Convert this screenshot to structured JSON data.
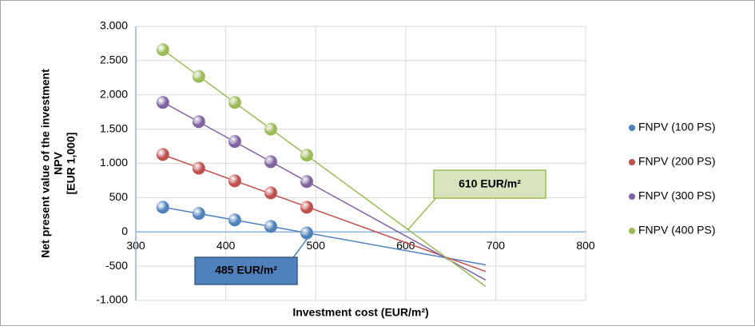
{
  "chart_data": {
    "type": "scatter",
    "x_label": "Investment cost (EUR/m²)",
    "y_label": [
      "Net present value of the investment",
      "NPV",
      "[EUR 1,000]"
    ],
    "x": [
      330,
      370,
      410,
      450,
      490
    ],
    "series": [
      {
        "name": "FNPV (100 PS)",
        "color": "#4f81bd",
        "values": [
          360,
          270,
          175,
          80,
          -15
        ]
      },
      {
        "name": "FNPV (200 PS)",
        "color": "#c0504d",
        "values": [
          1130,
          930,
          745,
          570,
          360
        ]
      },
      {
        "name": "FNPV (300 PS)",
        "color": "#8064a2",
        "values": [
          1890,
          1610,
          1320,
          1025,
          735
        ]
      },
      {
        "name": "FNPV (400 PS)",
        "color": "#9bbb59",
        "values": [
          2660,
          2270,
          1890,
          1500,
          1120
        ]
      }
    ],
    "xlim": [
      300,
      800
    ],
    "xticks": [
      300,
      400,
      500,
      600,
      700,
      800
    ],
    "ylim": [
      -1000,
      3000
    ],
    "yticks": [
      {
        "value": -1000,
        "label": "-1.000"
      },
      -500,
      0,
      500,
      {
        "value": 1000,
        "label": "1.000"
      },
      {
        "value": 1500,
        "label": "1.500"
      },
      {
        "value": 2000,
        "label": "2.000"
      },
      {
        "value": 2500,
        "label": "2.500"
      },
      {
        "value": 3000,
        "label": "3.000"
      }
    ],
    "grid": true,
    "trendline": true,
    "legend": "right",
    "annotations": [
      "610 EUR/m²",
      "485 EUR/m²"
    ]
  }
}
